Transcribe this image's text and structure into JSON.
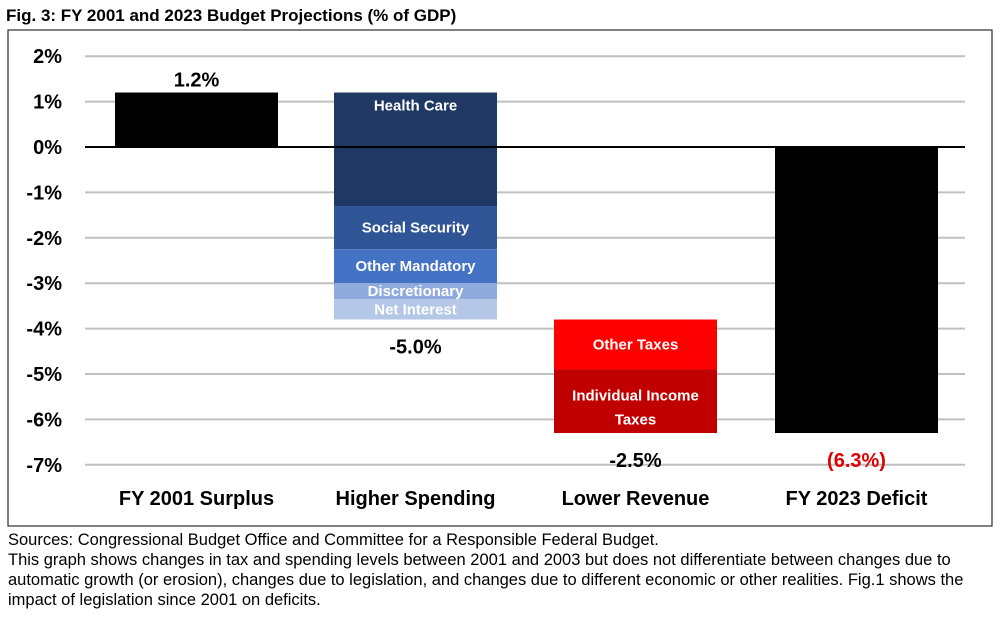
{
  "chart_data": {
    "type": "bar",
    "subtype": "waterfall",
    "title": "Fig. 3: FY 2001 and 2023 Budget Projections (% of GDP)",
    "xlabel": "",
    "ylabel": "",
    "ylim": [
      -7,
      2
    ],
    "yticks": [
      "2%",
      "1%",
      "0%",
      "-1%",
      "-2%",
      "-3%",
      "-4%",
      "-5%",
      "-6%",
      "-7%"
    ],
    "grid": true,
    "categories": [
      "FY 2001 Surplus",
      "Higher Spending",
      "Lower Revenue",
      "FY 2023 Deficit"
    ],
    "bars": [
      {
        "category": "FY 2001 Surplus",
        "start": 0,
        "end": 1.2,
        "label": "1.2%",
        "label_color": "#000000",
        "segments": [
          {
            "name": "",
            "value": 1.2,
            "color": "#000000"
          }
        ]
      },
      {
        "category": "Higher Spending",
        "start": 1.2,
        "end": -3.8,
        "label": "-5.0%",
        "label_color": "#000000",
        "segments": [
          {
            "name": "Health Care",
            "value": -2.5,
            "color": "#1f3864"
          },
          {
            "name": "Social Security",
            "value": -0.95,
            "color": "#2f5597"
          },
          {
            "name": "Other Mandatory",
            "value": -0.75,
            "color": "#4472c4"
          },
          {
            "name": "Discretionary",
            "value": -0.35,
            "color": "#8faadc"
          },
          {
            "name": "Net Interest",
            "value": -0.45,
            "color": "#b4c7e7"
          }
        ]
      },
      {
        "category": "Lower Revenue",
        "start": -3.8,
        "end": -6.3,
        "label": "-2.5%",
        "label_color": "#000000",
        "segments": [
          {
            "name": "Other Taxes",
            "value": -1.1,
            "color": "#ff0000"
          },
          {
            "name": "Individual Income Taxes",
            "value": -1.4,
            "color": "#c00000"
          }
        ]
      },
      {
        "category": "FY 2023 Deficit",
        "start": 0,
        "end": -6.3,
        "label": "(6.3%)",
        "label_color": "#e00000",
        "segments": [
          {
            "name": "",
            "value": -6.3,
            "color": "#000000"
          }
        ]
      }
    ]
  },
  "notes": {
    "sources": "Sources: Congressional Budget Office and Committee for a Responsible Federal Budget.",
    "description": "This graph shows changes in tax and spending levels between 2001 and 2003 but does not differentiate between changes due to automatic growth (or erosion), changes due to legislation, and changes due to different economic or other realities. Fig.1 shows the impact of legislation since 2001 on deficits."
  }
}
